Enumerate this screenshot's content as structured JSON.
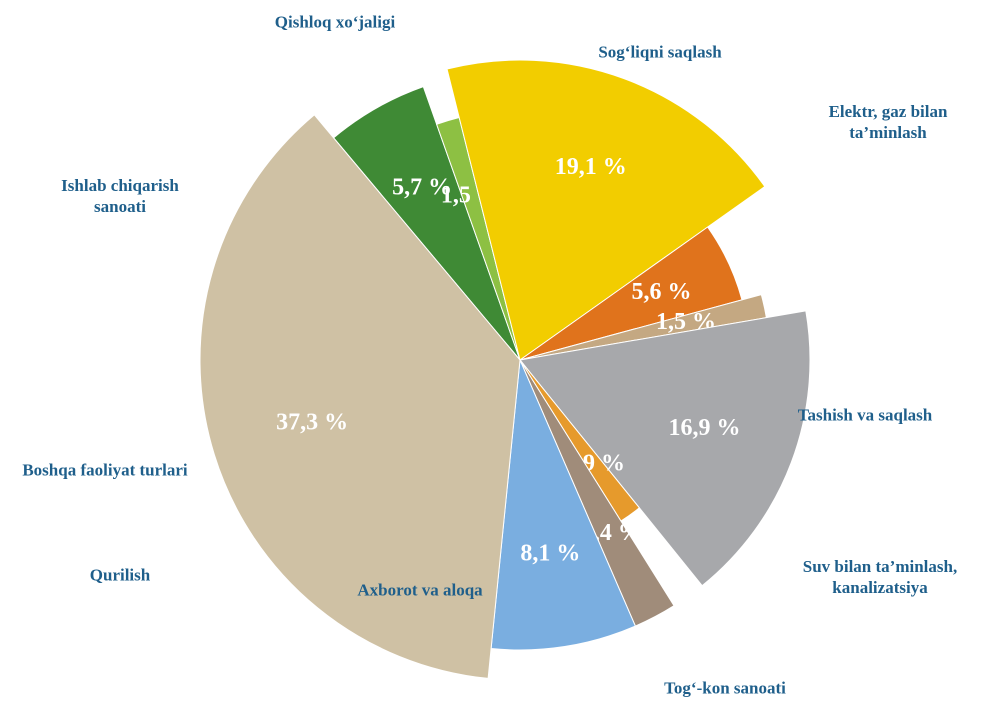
{
  "chart_data": {
    "type": "pie",
    "categories": [
      "Qishloq xo‘jaligi",
      "Sog‘liqni  saqlash",
      "Elektr, gaz bilan ta’minlash",
      "Tashish va saqlash",
      "Suv bilan ta’minlash, kanalizatsiya",
      "Tog‘-kon sanoati",
      "Axborot va aloqa",
      "Qurilish",
      "Boshqa faoliyat turlari",
      "Ishlab chiqarish sanoati"
    ],
    "values": [
      5.7,
      1.5,
      19.1,
      5.6,
      1.5,
      16.9,
      1.9,
      2.4,
      8.1,
      37.3
    ],
    "value_labels": [
      "5,7 %",
      "1,5 %",
      "19,1 %",
      "5,6 %",
      "1,5 %",
      "16,9 %",
      "1,9 %",
      "2,4 %",
      "8,1 %",
      "37,3 %"
    ],
    "colors": [
      "#3f8a35",
      "#8dc043",
      "#f2cd00",
      "#e0731c",
      "#c4a882",
      "#a7a8ab",
      "#e69a2c",
      "#a08c7a",
      "#7aaee0",
      "#cfc1a4"
    ]
  }
}
